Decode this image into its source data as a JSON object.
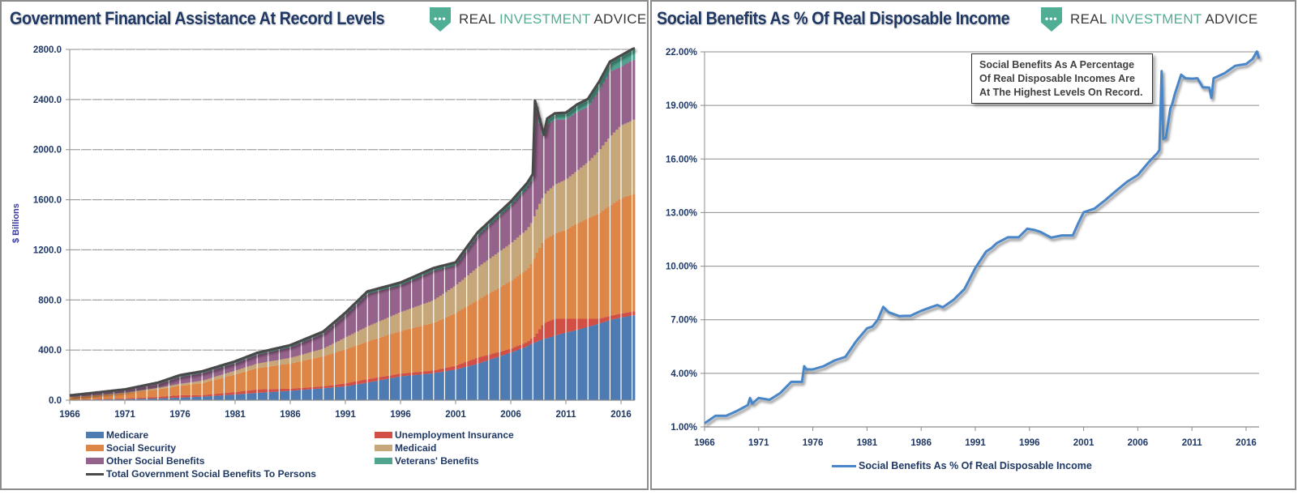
{
  "left_panel": {
    "title": "Government Financial Assistance At Record Levels",
    "logo": {
      "icon": "shield-dots-icon",
      "text_1": "REAL ",
      "text_2": "INVESTMENT",
      "text_3": " ADVICE"
    }
  },
  "right_panel": {
    "title": "Social Benefits As % Of Real Disposable Income",
    "logo": {
      "icon": "shield-dots-icon",
      "text_1": "REAL ",
      "text_2": "INVESTMENT",
      "text_3": " ADVICE"
    },
    "callout": [
      "Social Benefits As  A Percentage",
      "Of Real Disposable Incomes Are",
      "At The Highest Levels On Record."
    ]
  },
  "colors": {
    "medicare": "#4f7bb3",
    "unemployment": "#d24f45",
    "social_security": "#de8647",
    "medicaid": "#c6a779",
    "other": "#94628a",
    "veterans": "#4fa38f",
    "total": "#4a4a4a",
    "pct_line": "#4a86c8",
    "axis_text": "#1f3864",
    "grid": "#8c8c8c"
  },
  "chart_data": [
    {
      "type": "bar",
      "stacked": true,
      "title": "Government Financial Assistance At Record Levels",
      "xlabel": "",
      "ylabel": "$ Billions",
      "ylim": [
        0,
        2800
      ],
      "xlim": [
        1966,
        2017.25
      ],
      "yticks": [
        "0.0",
        "400.0",
        "800.0",
        "1200.0",
        "1600.0",
        "2000.0",
        "2400.0",
        "2800.0"
      ],
      "ytick_values": [
        0,
        400,
        800,
        1200,
        1600,
        2000,
        2400,
        2800
      ],
      "xticks": [
        "1966",
        "1971",
        "1976",
        "1981",
        "1986",
        "1991",
        "1996",
        "2001",
        "2006",
        "2011",
        "2016"
      ],
      "grid": true,
      "legend_position": "bottom",
      "x": [
        1966,
        1968,
        1971,
        1974,
        1976,
        1978,
        1981,
        1983,
        1986,
        1989,
        1991,
        1993,
        1996,
        1999,
        2001,
        2003,
        2006,
        2007.5,
        2008,
        2008.2,
        2009,
        2009.3,
        2010,
        2011,
        2012,
        2013,
        2014,
        2015,
        2016,
        2017,
        2017.25
      ],
      "series": [
        {
          "name": "Medicare",
          "key": "medicare",
          "values": [
            0,
            5,
            8,
            14,
            20,
            28,
            45,
            58,
            75,
            95,
            110,
            140,
            190,
            215,
            245,
            290,
            380,
            430,
            455,
            460,
            490,
            495,
            515,
            540,
            560,
            585,
            610,
            640,
            660,
            675,
            680
          ]
        },
        {
          "name": "Unemployment Insurance",
          "key": "unemployment",
          "values": [
            2,
            3,
            6,
            12,
            20,
            12,
            20,
            28,
            17,
            16,
            25,
            28,
            22,
            22,
            30,
            50,
            30,
            35,
            45,
            50,
            125,
            130,
            135,
            110,
            90,
            65,
            40,
            33,
            32,
            31,
            31
          ]
        },
        {
          "name": "Social Security",
          "key": "social_security",
          "values": [
            20,
            25,
            40,
            60,
            75,
            95,
            140,
            170,
            200,
            240,
            270,
            300,
            340,
            380,
            420,
            460,
            540,
            580,
            600,
            640,
            660,
            670,
            680,
            710,
            760,
            800,
            840,
            880,
            920,
            935,
            940
          ]
        },
        {
          "name": "Medicaid",
          "key": "medicaid",
          "values": [
            2,
            4,
            8,
            12,
            15,
            20,
            30,
            36,
            45,
            60,
            95,
            120,
            150,
            180,
            220,
            260,
            300,
            320,
            330,
            340,
            360,
            370,
            390,
            400,
            420,
            450,
            500,
            550,
            580,
            590,
            595
          ]
        },
        {
          "name": "Other Social Benefits",
          "key": "other",
          "values": [
            9,
            14,
            16,
            30,
            55,
            60,
            60,
            70,
            85,
            120,
            180,
            260,
            215,
            235,
            160,
            250,
            300,
            330,
            335,
            870,
            440,
            535,
            520,
            480,
            470,
            440,
            480,
            520,
            470,
            480,
            474
          ]
        },
        {
          "name": "Veterans' Benefits",
          "key": "veterans",
          "values": [
            5,
            6,
            8,
            12,
            15,
            15,
            15,
            16,
            17,
            17,
            18,
            20,
            22,
            23,
            25,
            30,
            35,
            40,
            40,
            40,
            45,
            48,
            50,
            55,
            60,
            65,
            70,
            80,
            90,
            90,
            90
          ]
        }
      ],
      "line_series": {
        "name": "Total Government Social Benefits To Persons",
        "key": "total",
        "values": [
          38,
          57,
          86,
          140,
          200,
          230,
          310,
          378,
          439,
          548,
          698,
          868,
          939,
          1055,
          1100,
          1340,
          1585,
          1735,
          1805,
          2390,
          2120,
          2248,
          2290,
          2295,
          2360,
          2405,
          2540,
          2703,
          2752,
          2801,
          2810
        ]
      }
    },
    {
      "type": "line",
      "title": "Social Benefits As % Of Real Disposable Income",
      "xlabel": "",
      "ylabel": "",
      "ylim": [
        1,
        22
      ],
      "xlim": [
        1966,
        2017.2
      ],
      "yticks": [
        "1.00%",
        "4.00%",
        "7.00%",
        "10.00%",
        "13.00%",
        "16.00%",
        "19.00%",
        "22.00%"
      ],
      "ytick_values": [
        1,
        4,
        7,
        10,
        13,
        16,
        19,
        22
      ],
      "xticks": [
        "1966",
        "1971",
        "1976",
        "1981",
        "1986",
        "1991",
        "1996",
        "2001",
        "2006",
        "2011",
        "2016"
      ],
      "grid": true,
      "legend_position": "bottom",
      "series": [
        {
          "name": "Social Benefits As % Of Real Disposable Income",
          "x": [
            1966,
            1967,
            1968,
            1969,
            1970,
            1970.2,
            1970.4,
            1971,
            1972,
            1973,
            1974,
            1975,
            1975.2,
            1975.4,
            1976,
            1977,
            1978,
            1979,
            1980,
            1981,
            1981.5,
            1982,
            1982.5,
            1983,
            1984,
            1984.5,
            1985,
            1986,
            1987,
            1987.5,
            1988,
            1989,
            1990,
            1991,
            1992,
            1992.5,
            1993,
            1994,
            1995,
            1995.8,
            1996.5,
            1997,
            1998,
            1999,
            2000,
            2000.5,
            2001,
            2002,
            2003,
            2004,
            2005,
            2006,
            2007,
            2007.8,
            2008.0,
            2008.2,
            2008.35,
            2008.6,
            2009.0,
            2009.2,
            2009.4,
            2010,
            2010.4,
            2011,
            2011.5,
            2012,
            2012.6,
            2012.8,
            2013,
            2014,
            2015,
            2016,
            2016.6,
            2017,
            2017.2
          ],
          "values": [
            1.2,
            1.5,
            1.7,
            1.9,
            2.1,
            2.7,
            2.3,
            2.5,
            2.6,
            2.9,
            3.4,
            3.6,
            4.4,
            4.1,
            4.3,
            4.4,
            4.6,
            5.0,
            5.8,
            6.4,
            6.7,
            7.0,
            7.6,
            7.5,
            7.2,
            7.1,
            7.3,
            7.5,
            7.6,
            7.9,
            7.7,
            8.0,
            8.8,
            9.9,
            10.7,
            11.1,
            11.3,
            11.5,
            11.7,
            12.1,
            11.9,
            12.0,
            11.6,
            11.6,
            11.8,
            12.4,
            12.9,
            13.3,
            13.7,
            14.1,
            14.8,
            15.1,
            15.7,
            16.4,
            16.5,
            20.8,
            17.2,
            17.2,
            18.7,
            19.2,
            19.6,
            20.6,
            20.6,
            20.5,
            20.4,
            20.1,
            20.0,
            19.3,
            20.6,
            20.8,
            21.1,
            21.4,
            21.6,
            21.9,
            21.7
          ]
        }
      ]
    }
  ]
}
